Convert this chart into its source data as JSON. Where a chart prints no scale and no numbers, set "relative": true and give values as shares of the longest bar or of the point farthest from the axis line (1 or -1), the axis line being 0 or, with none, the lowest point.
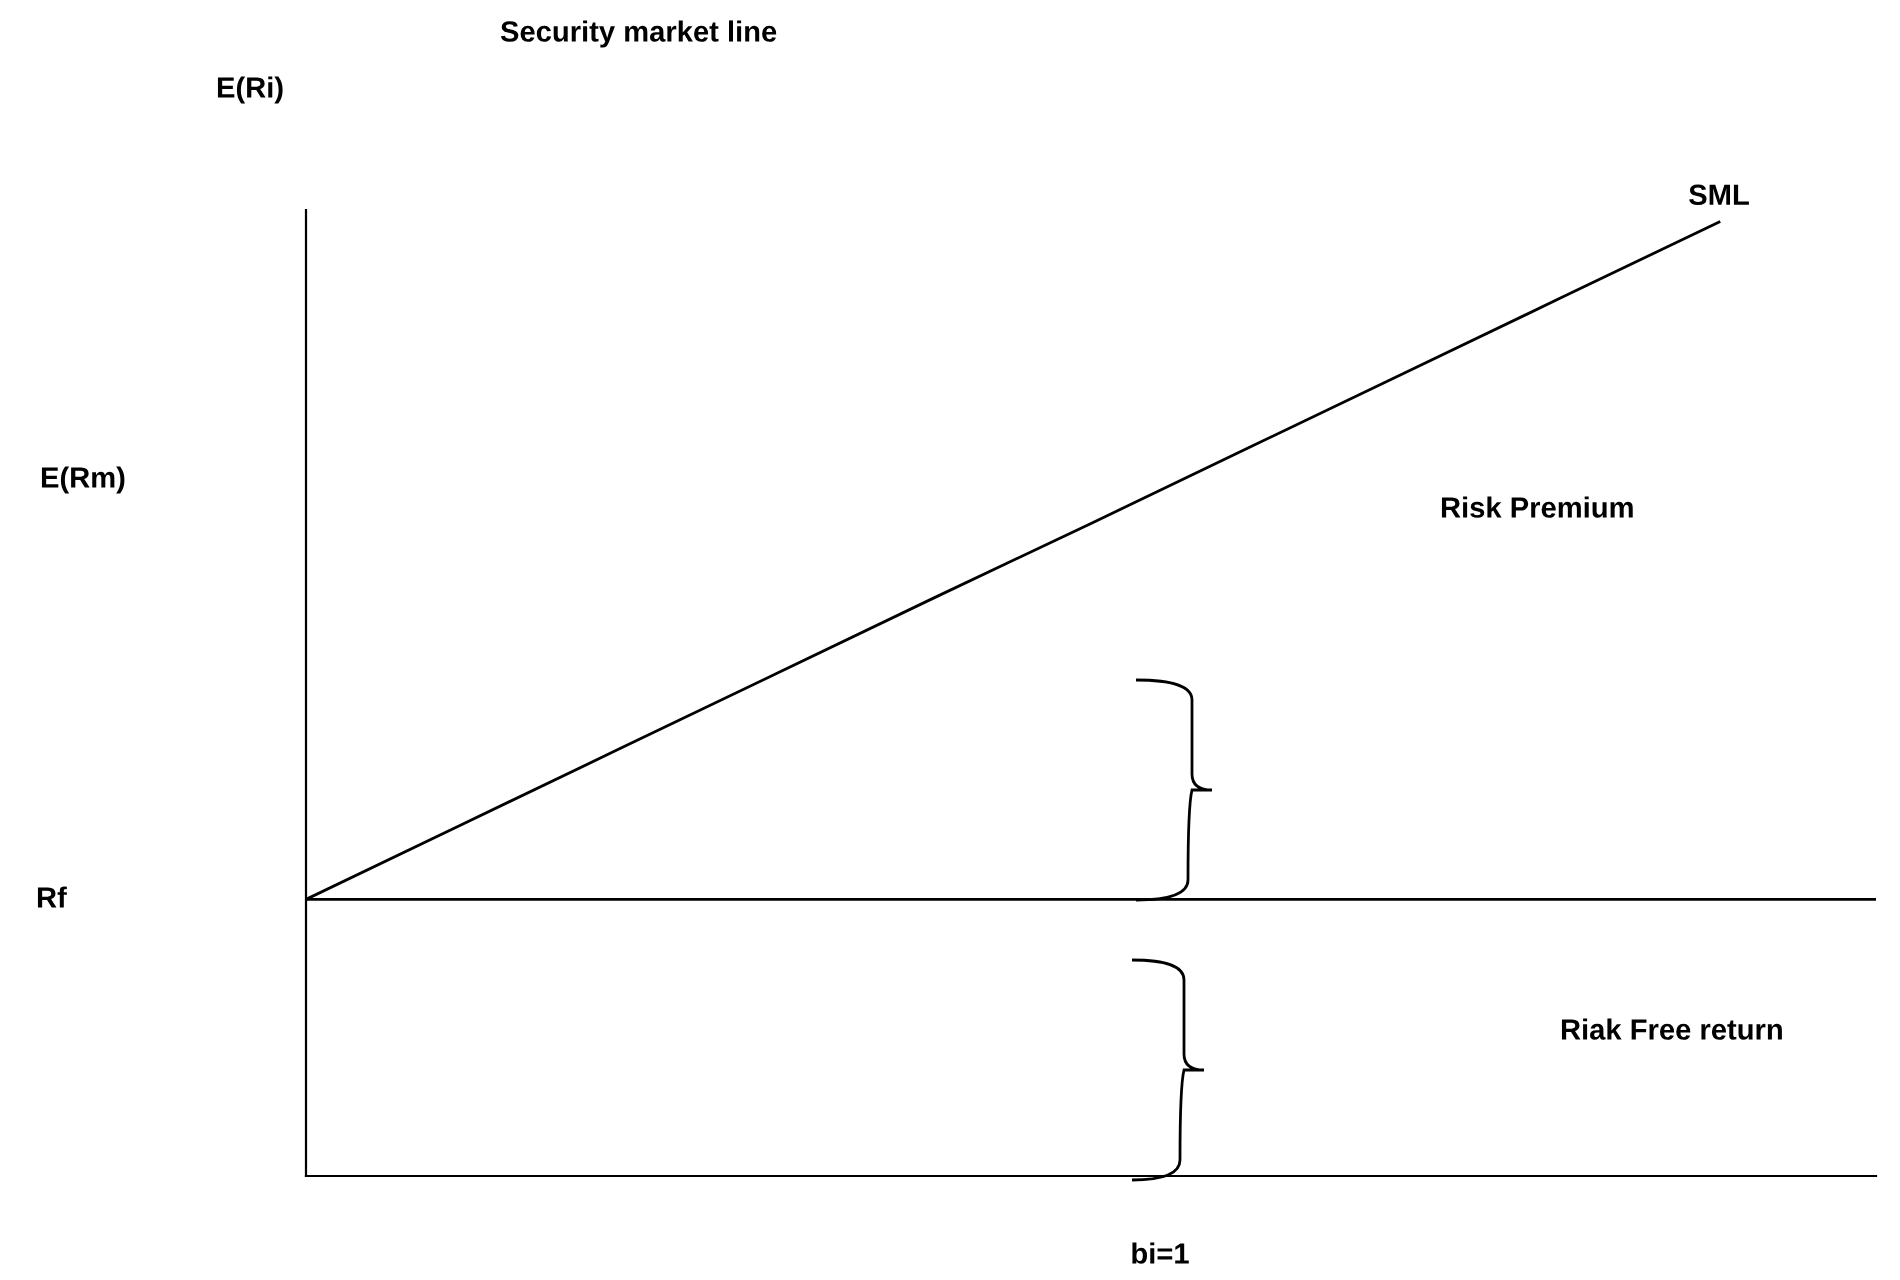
{
  "chart_data": {
    "type": "line",
    "title": "Security market line",
    "ylabel": "E(Ri)",
    "xlabel": "bi=1",
    "relative": true,
    "categories": [
      null,
      null,
      null,
      null,
      null,
      null,
      null,
      null,
      null,
      null,
      null
    ],
    "series": [
      {
        "name": "SML",
        "color": "#000000",
        "values": [
          0.29,
          0.369,
          0.448,
          0.527,
          0.606,
          0.684,
          0.763,
          0.842,
          0.921,
          1,
          null
        ]
      },
      {
        "color": "#000000",
        "values": [
          0.29,
          0.29,
          0.29,
          0.29,
          0.29,
          0.29,
          0.29,
          0.29,
          0.29,
          0.29,
          0.29
        ]
      }
    ],
    "annotations": [
      "E(Rm)",
      "Risk Premium",
      "Riak Free return",
      "Rf"
    ],
    "grid": false,
    "legend": false,
    "marker": "none",
    "line_style": "solid"
  }
}
